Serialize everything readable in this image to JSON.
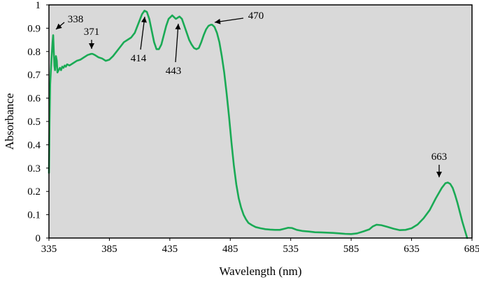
{
  "chart_data": {
    "type": "line",
    "title": "",
    "xlabel": "Wavelength (nm)",
    "ylabel": "Absorbance",
    "xlim": [
      335,
      685
    ],
    "ylim": [
      0,
      1
    ],
    "x_ticks": [
      335,
      385,
      435,
      485,
      535,
      585,
      635,
      685
    ],
    "y_ticks": [
      0,
      0.1,
      0.2,
      0.3,
      0.4,
      0.5,
      0.6,
      0.7,
      0.8,
      0.9,
      1
    ],
    "y_tick_labels": [
      "0",
      "0.1",
      "0.2",
      "0.3",
      "0.4",
      "0.5",
      "0.6",
      "0.7",
      "0.8",
      "0.9",
      "1"
    ],
    "grid": false,
    "background_color": "#d9d9d9",
    "series": [
      {
        "color": "#1aaa55",
        "x": [
          335,
          335.5,
          336,
          337,
          338,
          338.5,
          339,
          339.5,
          340,
          340.8,
          341.5,
          342,
          343,
          344,
          345,
          346,
          347,
          348,
          349,
          350,
          352,
          355,
          358,
          361,
          364,
          367,
          370,
          371,
          373,
          376,
          379,
          382,
          385,
          388,
          391,
          394,
          397,
          400,
          403,
          406,
          409,
          412,
          414,
          416,
          418,
          420,
          422,
          424,
          426,
          428,
          430,
          432,
          434,
          437,
          440,
          443,
          445,
          447,
          449,
          451,
          453,
          455,
          457,
          459,
          461,
          463,
          465,
          467,
          469,
          470,
          472,
          474,
          476,
          478,
          480,
          482,
          484,
          486,
          488,
          490,
          492,
          494,
          496,
          498,
          500,
          503,
          506,
          510,
          514,
          518,
          522,
          526,
          530,
          533,
          536,
          540,
          545,
          550,
          555,
          560,
          565,
          570,
          575,
          580,
          585,
          590,
          595,
          600,
          603,
          606,
          610,
          615,
          620,
          625,
          630,
          635,
          640,
          645,
          650,
          655,
          660,
          663,
          665,
          667,
          669,
          671,
          673,
          675,
          677,
          679,
          681
        ],
        "y": [
          0.28,
          0.5,
          0.66,
          0.76,
          0.84,
          0.87,
          0.8,
          0.74,
          0.72,
          0.78,
          0.76,
          0.71,
          0.72,
          0.73,
          0.72,
          0.735,
          0.73,
          0.74,
          0.735,
          0.745,
          0.74,
          0.75,
          0.76,
          0.765,
          0.775,
          0.785,
          0.79,
          0.79,
          0.785,
          0.775,
          0.77,
          0.76,
          0.765,
          0.78,
          0.8,
          0.82,
          0.84,
          0.85,
          0.86,
          0.88,
          0.92,
          0.96,
          0.975,
          0.97,
          0.94,
          0.89,
          0.84,
          0.81,
          0.81,
          0.83,
          0.87,
          0.91,
          0.94,
          0.955,
          0.94,
          0.95,
          0.94,
          0.91,
          0.88,
          0.85,
          0.83,
          0.815,
          0.81,
          0.815,
          0.84,
          0.87,
          0.895,
          0.91,
          0.915,
          0.915,
          0.905,
          0.88,
          0.84,
          0.78,
          0.71,
          0.62,
          0.52,
          0.41,
          0.31,
          0.23,
          0.17,
          0.13,
          0.1,
          0.08,
          0.065,
          0.055,
          0.047,
          0.042,
          0.038,
          0.036,
          0.035,
          0.035,
          0.04,
          0.044,
          0.043,
          0.035,
          0.03,
          0.028,
          0.025,
          0.024,
          0.023,
          0.022,
          0.02,
          0.018,
          0.017,
          0.02,
          0.028,
          0.037,
          0.05,
          0.057,
          0.055,
          0.048,
          0.04,
          0.034,
          0.035,
          0.042,
          0.058,
          0.085,
          0.12,
          0.17,
          0.215,
          0.235,
          0.238,
          0.232,
          0.215,
          0.185,
          0.15,
          0.11,
          0.07,
          0.035,
          0.0
        ]
      }
    ],
    "annotations": [
      {
        "text": "338",
        "x": 338,
        "y": 0.87
      },
      {
        "text": "371",
        "x": 371,
        "y": 0.79
      },
      {
        "text": "414",
        "x": 414,
        "y": 0.975
      },
      {
        "text": "443",
        "x": 443,
        "y": 0.955
      },
      {
        "text": "470",
        "x": 470,
        "y": 0.915
      },
      {
        "text": "663",
        "x": 663,
        "y": 0.238
      }
    ]
  }
}
